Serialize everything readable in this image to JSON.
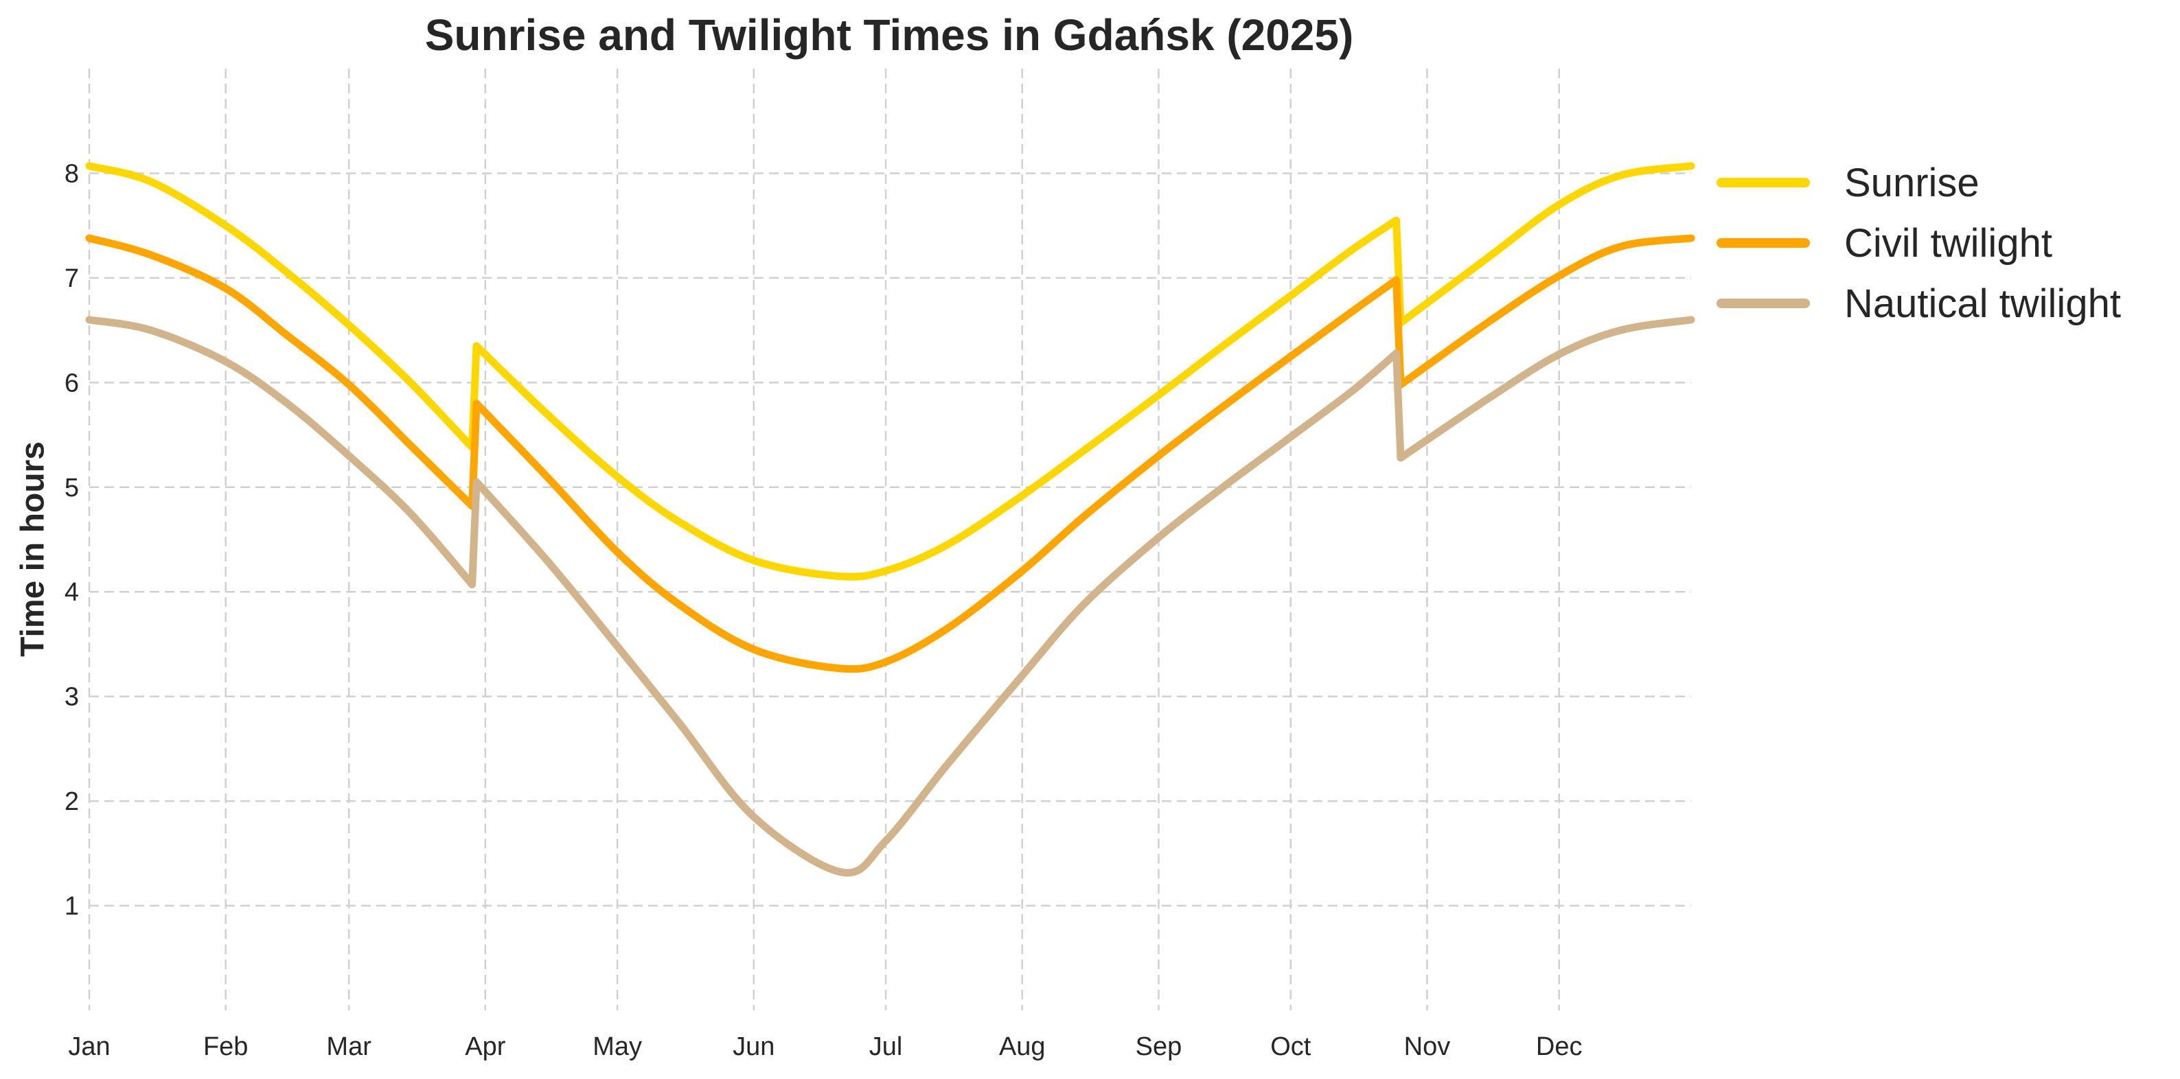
{
  "chart_data": {
    "type": "line",
    "title": "Sunrise and Twilight Times in Gdańsk (2025)",
    "xlabel": "",
    "ylabel": "Time in hours",
    "x_type": "date",
    "x_ticks": [
      {
        "date": "2025-01-01",
        "label": "Jan"
      },
      {
        "date": "2025-02-01",
        "label": "Feb"
      },
      {
        "date": "2025-03-01",
        "label": "Mar"
      },
      {
        "date": "2025-04-01",
        "label": "Apr"
      },
      {
        "date": "2025-05-01",
        "label": "May"
      },
      {
        "date": "2025-06-01",
        "label": "Jun"
      },
      {
        "date": "2025-07-01",
        "label": "Jul"
      },
      {
        "date": "2025-08-01",
        "label": "Aug"
      },
      {
        "date": "2025-09-01",
        "label": "Sep"
      },
      {
        "date": "2025-10-01",
        "label": "Oct"
      },
      {
        "date": "2025-11-01",
        "label": "Nov"
      },
      {
        "date": "2025-12-01",
        "label": "Dec"
      }
    ],
    "xlim": [
      "2025-01-01",
      "2025-12-31"
    ],
    "y_ticks": [
      1,
      2,
      3,
      4,
      5,
      6,
      7,
      8
    ],
    "ylim": [
      0,
      9
    ],
    "grid": true,
    "legend_position": "right",
    "series": [
      {
        "name": "Sunrise",
        "color": "#FFD700",
        "points": [
          [
            "2025-01-01",
            8.07
          ],
          [
            "2025-01-15",
            7.92
          ],
          [
            "2025-02-01",
            7.5
          ],
          [
            "2025-02-15",
            7.05
          ],
          [
            "2025-03-01",
            6.55
          ],
          [
            "2025-03-15",
            6.0
          ],
          [
            "2025-03-29",
            5.38
          ],
          [
            "2025-03-30",
            6.35
          ],
          [
            "2025-04-15",
            5.7
          ],
          [
            "2025-05-01",
            5.1
          ],
          [
            "2025-05-15",
            4.67
          ],
          [
            "2025-06-01",
            4.3
          ],
          [
            "2025-06-20",
            4.15
          ],
          [
            "2025-07-01",
            4.2
          ],
          [
            "2025-07-15",
            4.45
          ],
          [
            "2025-08-01",
            4.92
          ],
          [
            "2025-08-15",
            5.35
          ],
          [
            "2025-09-01",
            5.88
          ],
          [
            "2025-09-15",
            6.33
          ],
          [
            "2025-10-01",
            6.83
          ],
          [
            "2025-10-15",
            7.27
          ],
          [
            "2025-10-25",
            7.55
          ],
          [
            "2025-10-26",
            6.57
          ],
          [
            "2025-11-15",
            7.2
          ],
          [
            "2025-12-01",
            7.7
          ],
          [
            "2025-12-15",
            7.98
          ],
          [
            "2025-12-31",
            8.07
          ]
        ]
      },
      {
        "name": "Civil twilight",
        "color": "#FFA500",
        "points": [
          [
            "2025-01-01",
            7.38
          ],
          [
            "2025-01-15",
            7.22
          ],
          [
            "2025-02-01",
            6.9
          ],
          [
            "2025-02-15",
            6.45
          ],
          [
            "2025-03-01",
            5.98
          ],
          [
            "2025-03-15",
            5.4
          ],
          [
            "2025-03-29",
            4.82
          ],
          [
            "2025-03-30",
            5.8
          ],
          [
            "2025-04-15",
            5.1
          ],
          [
            "2025-05-01",
            4.38
          ],
          [
            "2025-05-15",
            3.88
          ],
          [
            "2025-06-01",
            3.45
          ],
          [
            "2025-06-20",
            3.27
          ],
          [
            "2025-07-01",
            3.33
          ],
          [
            "2025-07-15",
            3.65
          ],
          [
            "2025-08-01",
            4.2
          ],
          [
            "2025-08-15",
            4.72
          ],
          [
            "2025-09-01",
            5.3
          ],
          [
            "2025-09-15",
            5.75
          ],
          [
            "2025-10-01",
            6.25
          ],
          [
            "2025-10-15",
            6.68
          ],
          [
            "2025-10-25",
            6.98
          ],
          [
            "2025-10-26",
            5.98
          ],
          [
            "2025-11-15",
            6.58
          ],
          [
            "2025-12-01",
            7.02
          ],
          [
            "2025-12-15",
            7.3
          ],
          [
            "2025-12-31",
            7.38
          ]
        ]
      },
      {
        "name": "Nautical twilight",
        "color": "#D2B48C",
        "points": [
          [
            "2025-01-01",
            6.6
          ],
          [
            "2025-01-15",
            6.5
          ],
          [
            "2025-02-01",
            6.2
          ],
          [
            "2025-02-15",
            5.8
          ],
          [
            "2025-03-01",
            5.3
          ],
          [
            "2025-03-15",
            4.75
          ],
          [
            "2025-03-29",
            4.07
          ],
          [
            "2025-03-30",
            5.05
          ],
          [
            "2025-04-15",
            4.3
          ],
          [
            "2025-05-01",
            3.48
          ],
          [
            "2025-05-15",
            2.75
          ],
          [
            "2025-06-01",
            1.85
          ],
          [
            "2025-06-21",
            1.32
          ],
          [
            "2025-07-01",
            1.62
          ],
          [
            "2025-07-15",
            2.35
          ],
          [
            "2025-08-01",
            3.2
          ],
          [
            "2025-08-15",
            3.88
          ],
          [
            "2025-09-01",
            4.52
          ],
          [
            "2025-09-15",
            4.98
          ],
          [
            "2025-10-01",
            5.48
          ],
          [
            "2025-10-15",
            5.92
          ],
          [
            "2025-10-25",
            6.28
          ],
          [
            "2025-10-26",
            5.28
          ],
          [
            "2025-11-15",
            5.85
          ],
          [
            "2025-12-01",
            6.27
          ],
          [
            "2025-12-15",
            6.5
          ],
          [
            "2025-12-31",
            6.6
          ]
        ]
      }
    ]
  }
}
